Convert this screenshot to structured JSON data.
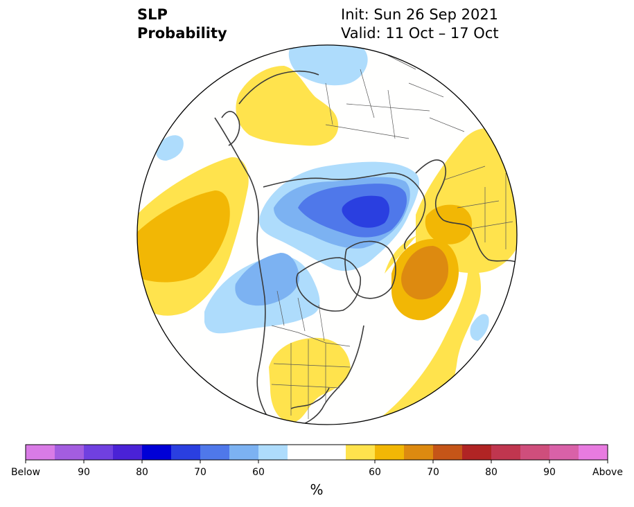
{
  "header": {
    "variable": "SLP",
    "product": "Probability",
    "init": "Init: Sun 26 Sep 2021",
    "valid": "Valid: 11 Oct – 17 Oct"
  },
  "colorbar": {
    "unit": "%",
    "bins": [
      {
        "color": "#d97be6"
      },
      {
        "color": "#a35de0"
      },
      {
        "color": "#7040e0"
      },
      {
        "color": "#4a22d6"
      },
      {
        "color": "#0000d6"
      },
      {
        "color": "#2a3fe0"
      },
      {
        "color": "#4f78ea"
      },
      {
        "color": "#7cb2f2"
      },
      {
        "color": "#aedcfc"
      },
      {
        "color": "#ffffff"
      },
      {
        "color": "#ffffff"
      },
      {
        "color": "#ffe34d"
      },
      {
        "color": "#f2b705"
      },
      {
        "color": "#dd8a10"
      },
      {
        "color": "#c55518"
      },
      {
        "color": "#b02424"
      },
      {
        "color": "#c0364f"
      },
      {
        "color": "#cf4e7c"
      },
      {
        "color": "#d961a8"
      },
      {
        "color": "#e87be0"
      }
    ],
    "tick_labels": [
      {
        "text": "Below",
        "edge": 0
      },
      {
        "text": "90",
        "edge": 2
      },
      {
        "text": "80",
        "edge": 4
      },
      {
        "text": "70",
        "edge": 6
      },
      {
        "text": "60",
        "edge": 8
      },
      {
        "text": "60",
        "edge": 12
      },
      {
        "text": "70",
        "edge": 14
      },
      {
        "text": "80",
        "edge": 16
      },
      {
        "text": "90",
        "edge": 18
      },
      {
        "text": "Above",
        "edge": 20
      }
    ]
  },
  "map": {
    "projection": "north-polar-stereographic",
    "ocean_color": "#fffffe",
    "coast_color": "#3a3a3a",
    "border_color": "#555555"
  }
}
